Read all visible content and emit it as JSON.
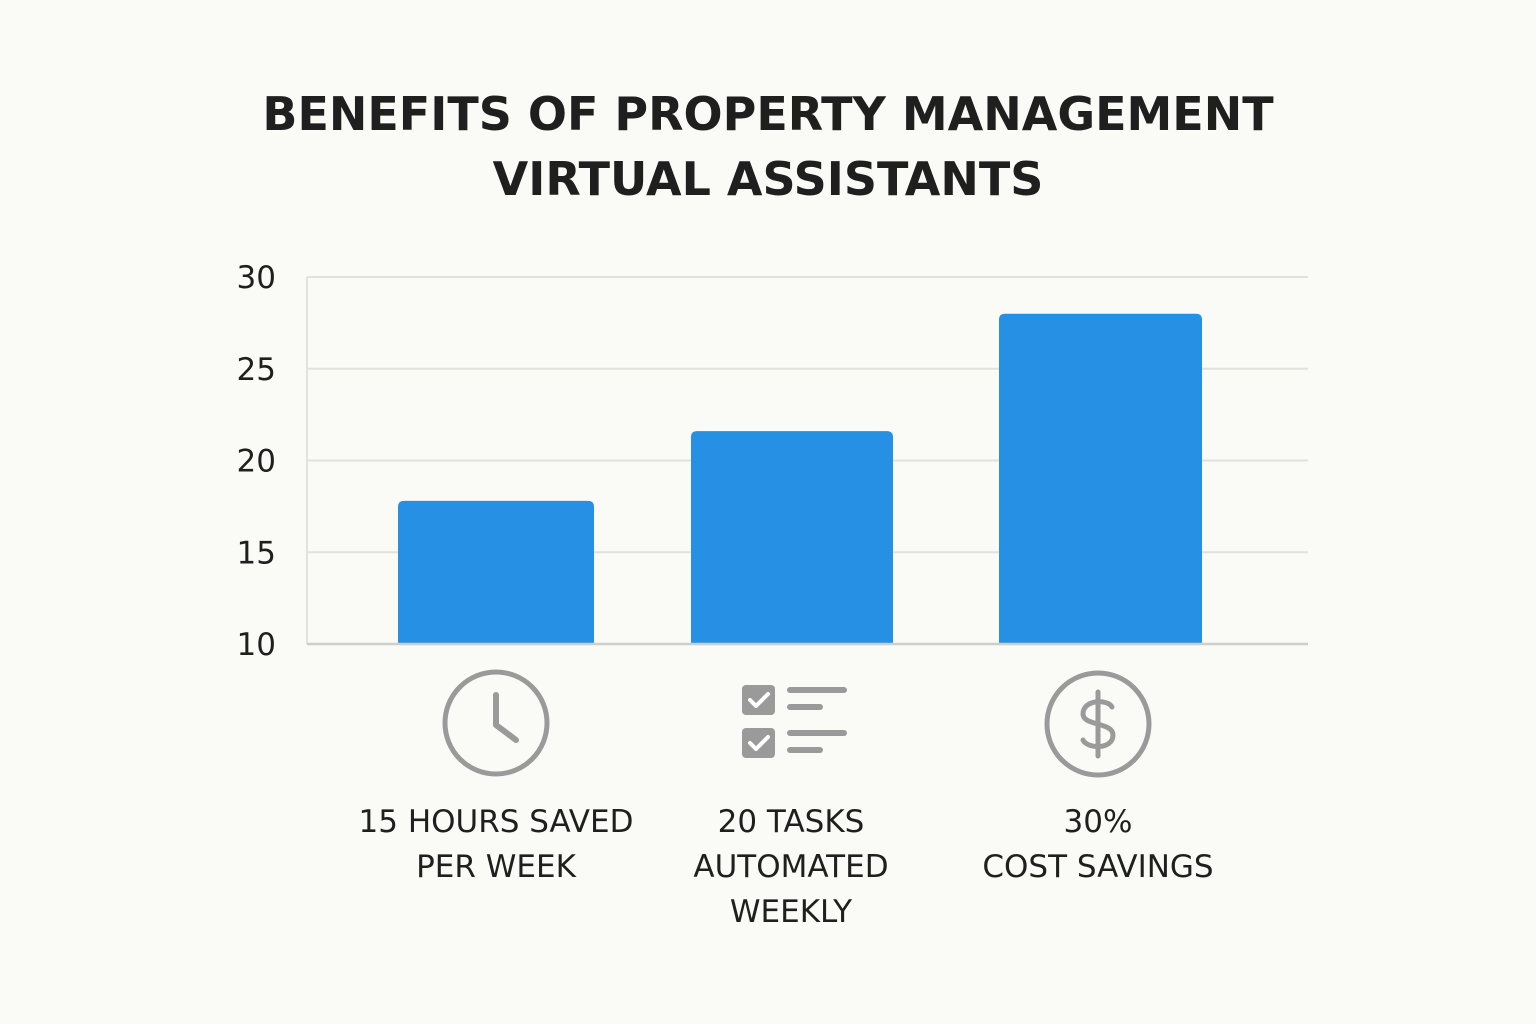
{
  "chart_data": {
    "type": "bar",
    "title": [
      "BENEFITS OF PROPERTY MANAGEMENT",
      "VIRTUAL ASSISTANTS"
    ],
    "xlabel": "",
    "ylabel": "",
    "ylim": [
      10,
      30
    ],
    "yticks": [
      "10",
      "15",
      "20",
      "25",
      "30"
    ],
    "grid": true,
    "legend": "none",
    "categories": [
      {
        "label_lines": [
          "15 HOURS SAVED",
          "PER WEEK"
        ],
        "icon": "clock-icon"
      },
      {
        "label_lines": [
          "20 TASKS",
          "AUTOMATED",
          "WEEKLY"
        ],
        "icon": "checklist-icon"
      },
      {
        "label_lines": [
          "30%",
          "COST SAVINGS"
        ],
        "icon": "dollar-circle-icon"
      }
    ],
    "values": [
      17.8,
      21.6,
      28.0
    ],
    "colors": {
      "bar": "#2590e4",
      "grid": "#e2e2dc",
      "axis": "#cfcfc9",
      "icon": "#9a9a9a",
      "text": "#1f1f1f",
      "background": "#fafaf6"
    }
  }
}
